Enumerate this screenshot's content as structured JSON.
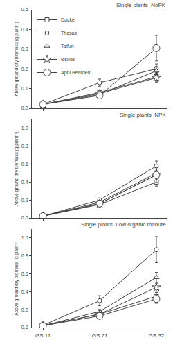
{
  "chart_data": [
    {
      "type": "line",
      "title": "Single plants  NoPK",
      "ylabel": "Above-ground dry biomass (g plant⁻¹)",
      "categories": [
        "GS 11",
        "GS 21",
        "GS 32"
      ],
      "series": [
        {
          "name": "Dacke",
          "color": "#444444",
          "marker": "square",
          "values": [
            0.02,
            0.08,
            0.16
          ],
          "errors": [
            0.003,
            0.012,
            0.022
          ]
        },
        {
          "name": "Thasas",
          "color": "#444444",
          "marker": "circle",
          "values": [
            0.02,
            0.13,
            0.2
          ],
          "errors": [
            0.003,
            0.018,
            0.025
          ]
        },
        {
          "name": "Taifun",
          "color": "#444444",
          "marker": "triangle-up",
          "values": [
            0.02,
            0.07,
            0.19
          ],
          "errors": [
            0.003,
            0.01,
            0.022
          ]
        },
        {
          "name": "Økilde",
          "color": "#444444",
          "marker": "star",
          "values": [
            0.02,
            0.075,
            0.155
          ],
          "errors": [
            0.003,
            0.01,
            0.022
          ]
        },
        {
          "name": "April Bearded",
          "color": "#444444",
          "marker": "circle",
          "values": [
            0.02,
            0.065,
            0.305
          ],
          "errors": [
            0.003,
            0.01,
            0.065
          ]
        }
      ],
      "ylim": [
        0,
        0.5
      ],
      "yticks": [
        {
          "value": 0,
          "label": "0.0"
        },
        0.1,
        0.2,
        0.3,
        0.4,
        0.5
      ],
      "grid": false,
      "legend": "upper left",
      "tick_labels": "y"
    },
    {
      "type": "line",
      "title": "Single plants  NPK",
      "ylabel": "Above-ground dry biomass (g plant⁻¹)",
      "categories": [
        "GS 11",
        "GS 21",
        "GS 32"
      ],
      "series": [
        {
          "name": "Dacke",
          "color": "#444444",
          "marker": "square",
          "values": [
            0.02,
            0.15,
            0.4
          ],
          "errors": [
            0.003,
            0.018,
            0.045
          ]
        },
        {
          "name": "Thasas",
          "color": "#444444",
          "marker": "circle",
          "values": [
            0.02,
            0.2,
            0.58
          ],
          "errors": [
            0.003,
            0.022,
            0.055
          ]
        },
        {
          "name": "Taifun",
          "color": "#444444",
          "marker": "triangle-up",
          "values": [
            0.02,
            0.175,
            0.5
          ],
          "errors": [
            0.003,
            0.018,
            0.045
          ]
        },
        {
          "name": "Økilde",
          "color": "#444444",
          "marker": "star",
          "values": [
            0.02,
            0.16,
            0.48
          ],
          "errors": [
            0.003,
            0.015,
            0.045
          ]
        },
        {
          "name": "April Bearded",
          "color": "#444444",
          "marker": "circle",
          "values": [
            0.02,
            0.16,
            0.48
          ],
          "errors": [
            0.003,
            0.015,
            0.085
          ]
        }
      ],
      "ylim": [
        0,
        1.1
      ],
      "yticks": [
        {
          "value": 0,
          "label": "0.0"
        },
        0.2,
        0.4,
        0.6,
        0.8,
        {
          "value": 1,
          "label": "1.0"
        }
      ],
      "grid": false,
      "tick_labels": "y"
    },
    {
      "type": "line",
      "title": "Single plants  Low organic manure",
      "ylabel": "Above-ground dry biomass (g plant⁻¹)",
      "categories": [
        "GS 11",
        "GS 21",
        "GS 32"
      ],
      "series": [
        {
          "name": "Dacke",
          "color": "#444444",
          "marker": "square",
          "values": [
            0.02,
            0.15,
            0.35
          ],
          "errors": [
            0.003,
            0.022,
            0.042
          ]
        },
        {
          "name": "Thasas",
          "color": "#444444",
          "marker": "circle",
          "values": [
            0.025,
            0.3,
            0.87
          ],
          "errors": [
            0.004,
            0.055,
            0.145
          ]
        },
        {
          "name": "Taifun",
          "color": "#444444",
          "marker": "triangle-up",
          "values": [
            0.02,
            0.18,
            0.56
          ],
          "errors": [
            0.003,
            0.022,
            0.055
          ]
        },
        {
          "name": "Økilde",
          "color": "#444444",
          "marker": "star",
          "values": [
            0.02,
            0.15,
            0.45
          ],
          "errors": [
            0.003,
            0.018,
            0.045
          ]
        },
        {
          "name": "April Bearded",
          "color": "#444444",
          "marker": "circle",
          "values": [
            0.02,
            0.13,
            0.32
          ],
          "errors": [
            0.003,
            0.018,
            0.048
          ]
        }
      ],
      "ylim": [
        0,
        1.1
      ],
      "yticks": [
        {
          "value": 0,
          "label": "0.0"
        },
        0.2,
        0.4,
        0.6,
        0.8,
        {
          "value": 1,
          "label": "1.0"
        }
      ],
      "grid": false
    }
  ]
}
